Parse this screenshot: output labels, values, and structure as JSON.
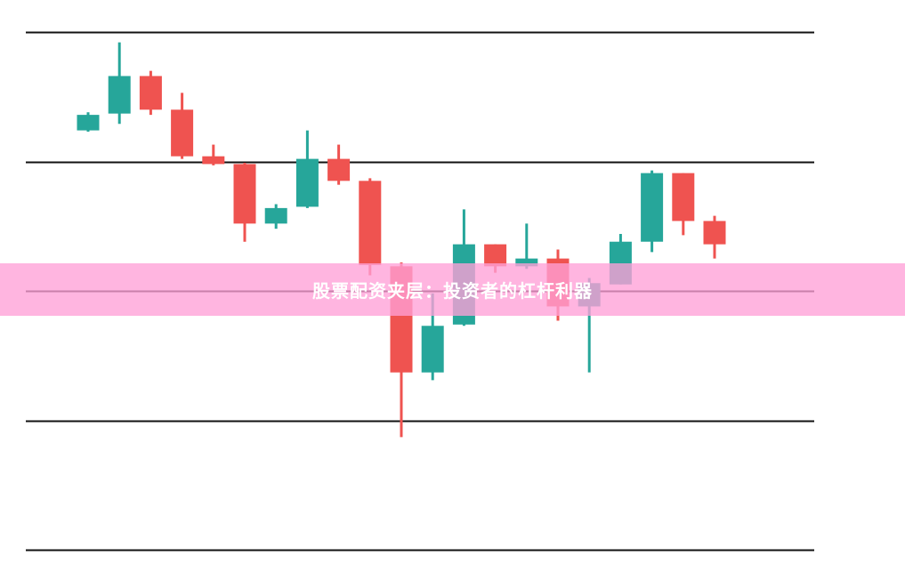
{
  "chart_data": {
    "type": "candlestick",
    "title": "",
    "xlabel": "",
    "ylabel": "",
    "ylim": [
      0,
      4
    ],
    "grid": {
      "horizontal": true,
      "vertical": false,
      "levels": [
        0,
        1,
        2,
        3,
        4
      ]
    },
    "colors": {
      "up": "#26a69a",
      "down": "#ef5350",
      "grid": "#111111"
    },
    "candles": [
      {
        "open": 3.24,
        "high": 3.38,
        "low": 3.23,
        "close": 3.36
      },
      {
        "open": 3.37,
        "high": 3.92,
        "low": 3.29,
        "close": 3.66
      },
      {
        "open": 3.66,
        "high": 3.7,
        "low": 3.36,
        "close": 3.4
      },
      {
        "open": 3.4,
        "high": 3.53,
        "low": 3.02,
        "close": 3.04
      },
      {
        "open": 3.04,
        "high": 3.13,
        "low": 2.97,
        "close": 2.98
      },
      {
        "open": 2.98,
        "high": 2.99,
        "low": 2.38,
        "close": 2.52
      },
      {
        "open": 2.52,
        "high": 2.67,
        "low": 2.48,
        "close": 2.64
      },
      {
        "open": 2.65,
        "high": 3.24,
        "low": 2.64,
        "close": 3.02
      },
      {
        "open": 3.02,
        "high": 3.13,
        "low": 2.82,
        "close": 2.85
      },
      {
        "open": 2.85,
        "high": 2.87,
        "low": 2.12,
        "close": 2.2
      },
      {
        "open": 2.19,
        "high": 2.22,
        "low": 0.87,
        "close": 1.37
      },
      {
        "open": 1.37,
        "high": 1.98,
        "low": 1.31,
        "close": 1.73
      },
      {
        "open": 1.74,
        "high": 2.63,
        "low": 1.73,
        "close": 2.36
      },
      {
        "open": 2.36,
        "high": 2.36,
        "low": 2.14,
        "close": 2.19
      },
      {
        "open": 2.19,
        "high": 2.52,
        "low": 2.17,
        "close": 2.25
      },
      {
        "open": 2.25,
        "high": 2.32,
        "low": 1.77,
        "close": 1.88
      },
      {
        "open": 1.88,
        "high": 2.1,
        "low": 1.37,
        "close": 2.06
      },
      {
        "open": 2.05,
        "high": 2.44,
        "low": 2.05,
        "close": 2.38
      },
      {
        "open": 2.38,
        "high": 2.93,
        "low": 2.3,
        "close": 2.91
      },
      {
        "open": 2.91,
        "high": 2.91,
        "low": 2.43,
        "close": 2.54
      },
      {
        "open": 2.54,
        "high": 2.58,
        "low": 2.25,
        "close": 2.36
      }
    ]
  },
  "banner": {
    "text": "股票配资夹层：投资者的杠杆利器"
  }
}
